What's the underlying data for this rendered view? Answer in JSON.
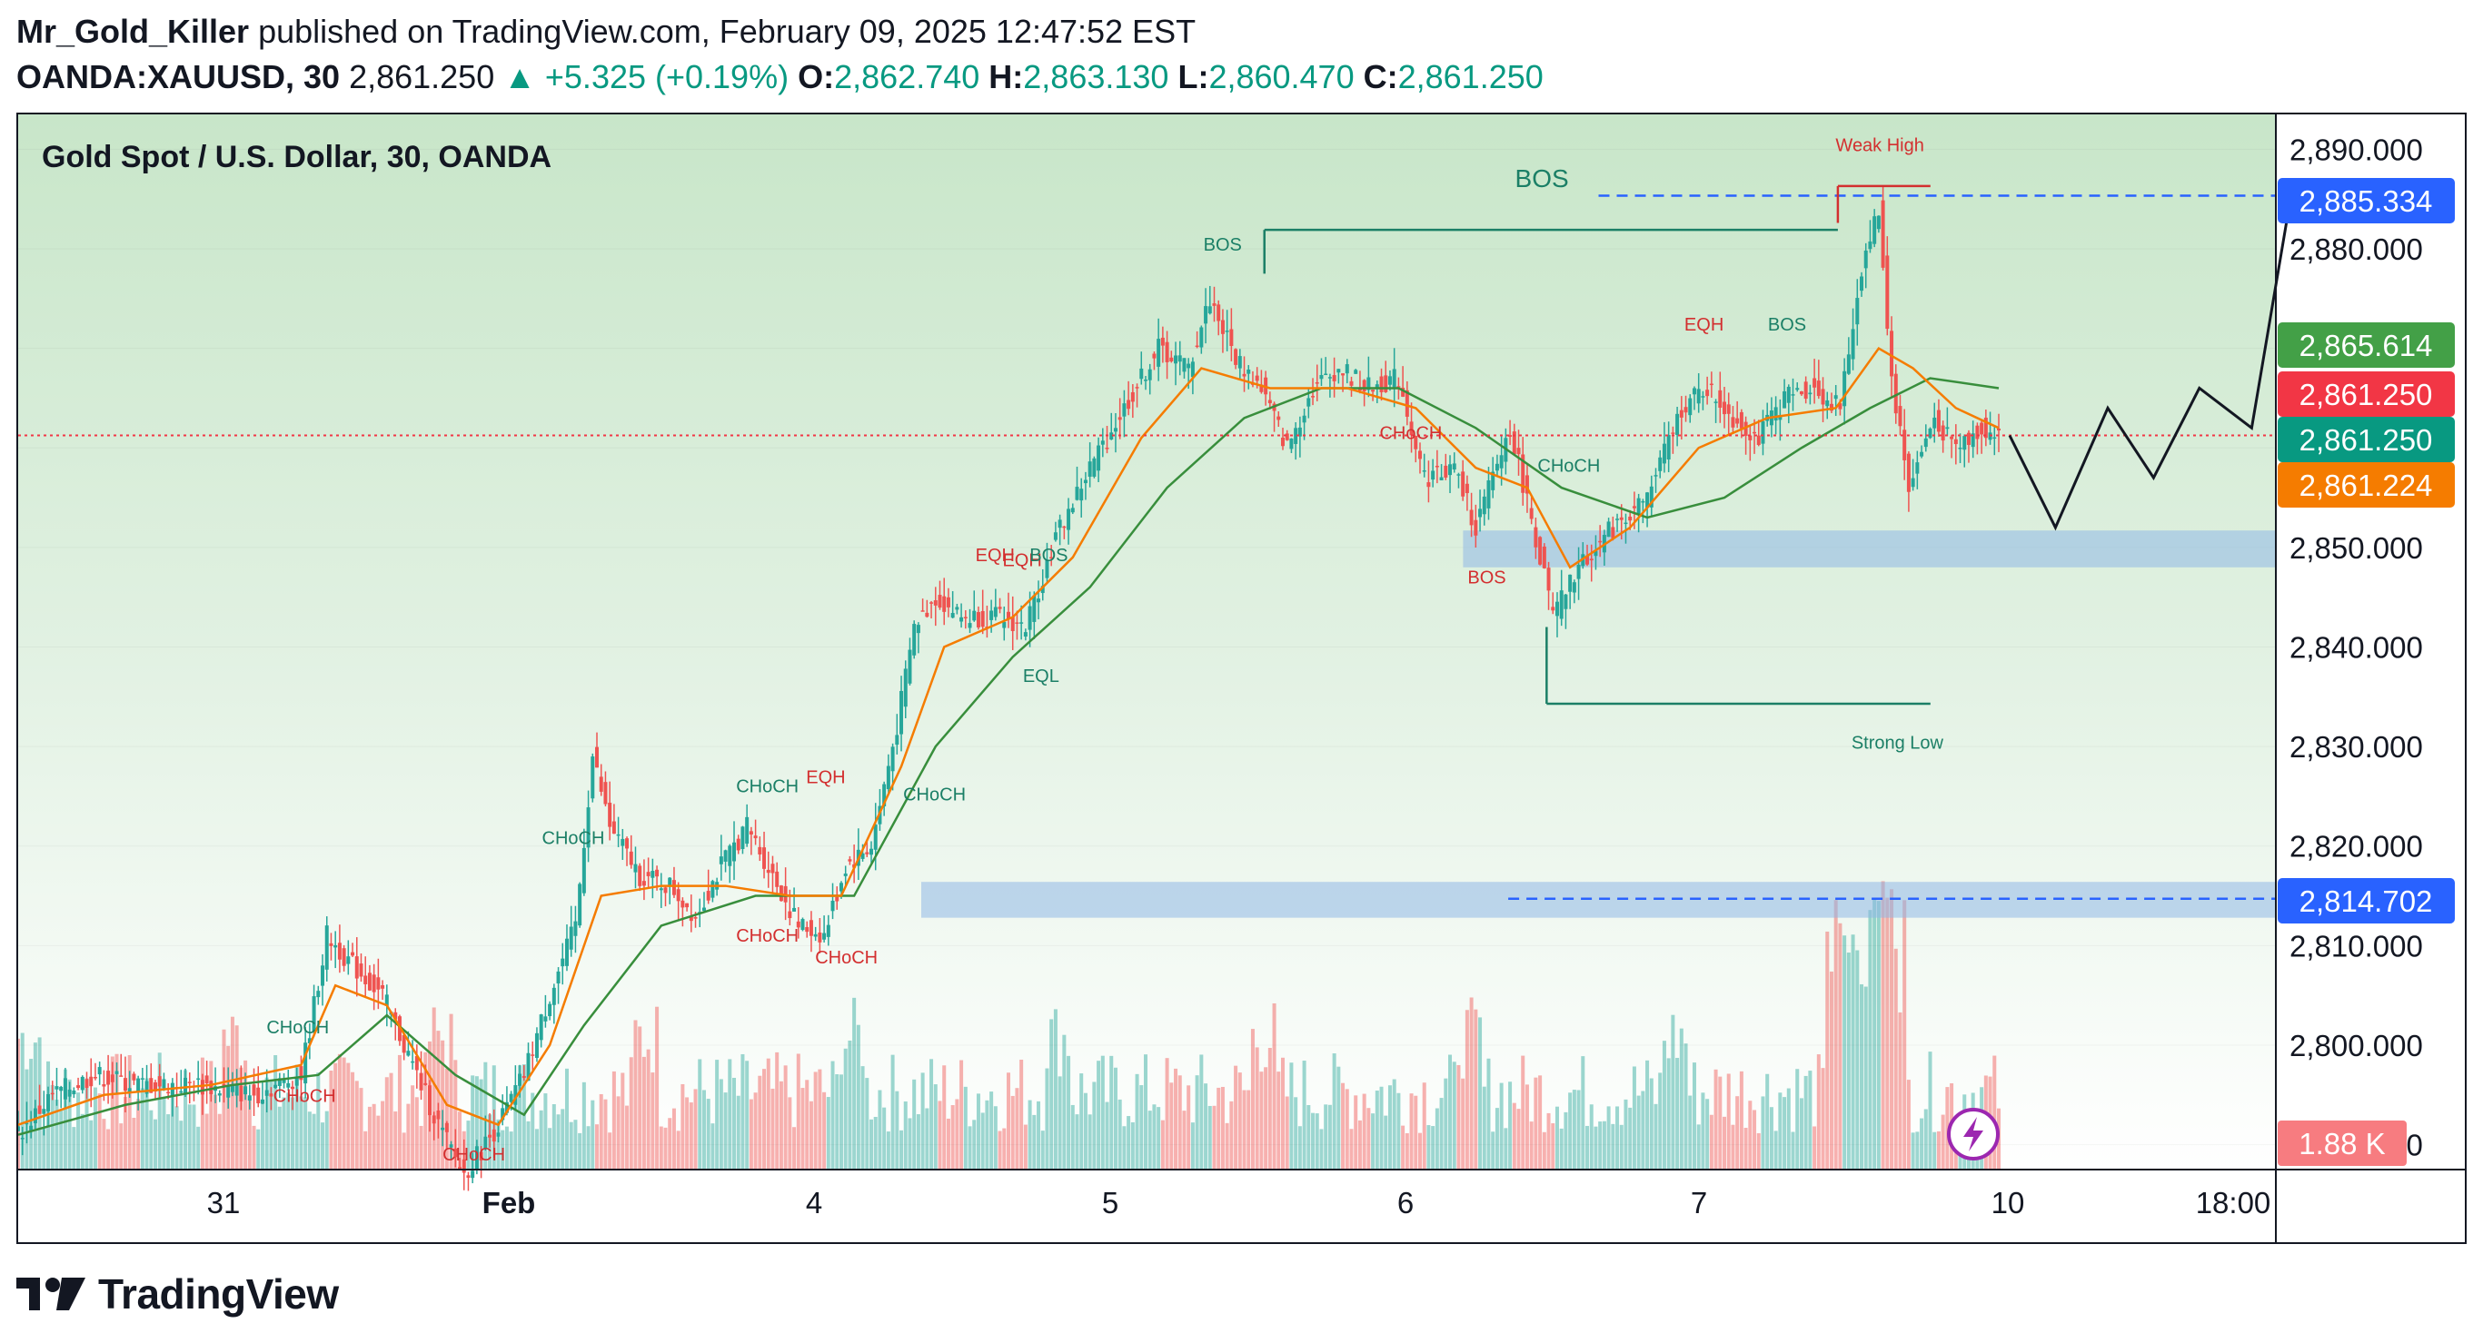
{
  "header": {
    "author": "Mr_Gold_Killer",
    "published_text": "published on TradingView.com, February 09, 2025 12:47:52 EST",
    "symbol": "OANDA:XAUUSD, 30",
    "last": "2,861.250",
    "change": "+5.325 (+0.19%)",
    "open_label": "O:",
    "open": "2,862.740",
    "high_label": "H:",
    "high": "2,863.130",
    "low_label": "L:",
    "low": "2,860.470",
    "close_label": "C:",
    "close": "2,861.250"
  },
  "footer": {
    "brand": "TradingView",
    "logo_icon": "tradingview-logo-icon"
  },
  "colors": {
    "bull": "#26a69a",
    "bear": "#ef5350",
    "ema_fast": "#f57c00",
    "ema_slow": "#388e3c",
    "accent_blue": "#2962ff",
    "structure_green": "#1b7f66",
    "structure_red": "#d32f2f"
  },
  "chart_data": {
    "type": "candlestick",
    "title": "Gold Spot / U.S. Dollar, 30, OANDA",
    "timeframe": "30",
    "x_ticks": [
      "31",
      "Feb",
      "4",
      "5",
      "6",
      "7",
      "10",
      "18:00"
    ],
    "y_ticks": [
      "2,890.000",
      "2,880.000",
      "2,870.000",
      "2,860.000",
      "2,850.000",
      "2,840.000",
      "2,830.000",
      "2,820.000",
      "2,810.000",
      "2,800.000",
      "2,790.000"
    ],
    "ylim": [
      2787.5,
      2893.5
    ],
    "price_labels": [
      {
        "value": 2885.334,
        "text": "2,885.334",
        "color": "#2962ff"
      },
      {
        "value": 2865.614,
        "text": "2,865.614",
        "color": "#43a047"
      },
      {
        "value": 2861.25,
        "text": "2,861.250",
        "color": "#f23645"
      },
      {
        "value": 2861.25,
        "text": "2,861.250",
        "color": "#089981"
      },
      {
        "value": 2861.224,
        "text": "2,861.224",
        "color": "#f57c00"
      },
      {
        "value": 2814.702,
        "text": "2,814.702",
        "color": "#2962ff"
      }
    ],
    "volume_label": "1.88 K",
    "price_path": [
      [
        0,
        2791
      ],
      [
        8,
        2795
      ],
      [
        18,
        2797
      ],
      [
        28,
        2796
      ],
      [
        42,
        2796
      ],
      [
        55,
        2795
      ],
      [
        66,
        2797
      ],
      [
        72,
        2811
      ],
      [
        78,
        2808
      ],
      [
        85,
        2805
      ],
      [
        92,
        2798
      ],
      [
        98,
        2792
      ],
      [
        104,
        2787
      ],
      [
        112,
        2792
      ],
      [
        118,
        2797
      ],
      [
        124,
        2805
      ],
      [
        130,
        2812
      ],
      [
        134,
        2829
      ],
      [
        138,
        2822
      ],
      [
        145,
        2817
      ],
      [
        152,
        2816
      ],
      [
        158,
        2813
      ],
      [
        164,
        2818
      ],
      [
        170,
        2822
      ],
      [
        176,
        2817
      ],
      [
        182,
        2812
      ],
      [
        188,
        2811
      ],
      [
        193,
        2818
      ],
      [
        199,
        2820
      ],
      [
        205,
        2832
      ],
      [
        209,
        2842
      ],
      [
        214,
        2845
      ],
      [
        220,
        2843
      ],
      [
        228,
        2843
      ],
      [
        235,
        2842
      ],
      [
        242,
        2851
      ],
      [
        250,
        2858
      ],
      [
        258,
        2864
      ],
      [
        266,
        2870
      ],
      [
        273,
        2868
      ],
      [
        278,
        2875
      ],
      [
        284,
        2869
      ],
      [
        290,
        2866
      ],
      [
        296,
        2860
      ],
      [
        302,
        2866
      ],
      [
        308,
        2868
      ],
      [
        315,
        2866
      ],
      [
        322,
        2867
      ],
      [
        328,
        2857
      ],
      [
        335,
        2858
      ],
      [
        340,
        2852
      ],
      [
        348,
        2862
      ],
      [
        354,
        2851
      ],
      [
        358,
        2843
      ],
      [
        364,
        2848
      ],
      [
        372,
        2852
      ],
      [
        380,
        2855
      ],
      [
        388,
        2864
      ],
      [
        394,
        2866
      ],
      [
        400,
        2863
      ],
      [
        406,
        2861
      ],
      [
        412,
        2865
      ],
      [
        418,
        2866
      ],
      [
        425,
        2864
      ],
      [
        430,
        2878
      ],
      [
        434,
        2884
      ],
      [
        437,
        2867
      ],
      [
        441,
        2856
      ],
      [
        447,
        2863
      ],
      [
        452,
        2860
      ],
      [
        458,
        2862
      ],
      [
        462,
        2861
      ]
    ],
    "ema_fast_path": [
      [
        0,
        2792
      ],
      [
        20,
        2795
      ],
      [
        45,
        2796
      ],
      [
        66,
        2798
      ],
      [
        74,
        2806
      ],
      [
        86,
        2804
      ],
      [
        100,
        2794
      ],
      [
        112,
        2792
      ],
      [
        124,
        2800
      ],
      [
        136,
        2815
      ],
      [
        150,
        2816
      ],
      [
        165,
        2816
      ],
      [
        180,
        2815
      ],
      [
        192,
        2815
      ],
      [
        206,
        2828
      ],
      [
        216,
        2840
      ],
      [
        232,
        2843
      ],
      [
        246,
        2849
      ],
      [
        262,
        2861
      ],
      [
        276,
        2868
      ],
      [
        292,
        2866
      ],
      [
        310,
        2866
      ],
      [
        326,
        2864
      ],
      [
        340,
        2858
      ],
      [
        352,
        2856
      ],
      [
        362,
        2848
      ],
      [
        376,
        2852
      ],
      [
        392,
        2860
      ],
      [
        408,
        2863
      ],
      [
        424,
        2864
      ],
      [
        434,
        2870
      ],
      [
        442,
        2868
      ],
      [
        452,
        2864
      ],
      [
        462,
        2862
      ]
    ],
    "ema_slow_path": [
      [
        0,
        2791
      ],
      [
        25,
        2794
      ],
      [
        50,
        2796
      ],
      [
        70,
        2797
      ],
      [
        86,
        2803
      ],
      [
        102,
        2797
      ],
      [
        118,
        2793
      ],
      [
        132,
        2802
      ],
      [
        150,
        2812
      ],
      [
        172,
        2815
      ],
      [
        195,
        2815
      ],
      [
        214,
        2830
      ],
      [
        232,
        2839
      ],
      [
        250,
        2846
      ],
      [
        268,
        2856
      ],
      [
        286,
        2863
      ],
      [
        304,
        2866
      ],
      [
        322,
        2866
      ],
      [
        340,
        2862
      ],
      [
        360,
        2856
      ],
      [
        380,
        2853
      ],
      [
        398,
        2855
      ],
      [
        416,
        2860
      ],
      [
        432,
        2864
      ],
      [
        446,
        2867
      ],
      [
        462,
        2866
      ]
    ],
    "projection_path": [
      [
        0,
        2861.25
      ],
      [
        7,
        2852
      ],
      [
        15,
        2864
      ],
      [
        22,
        2857
      ],
      [
        29,
        2866
      ],
      [
        37,
        2862
      ],
      [
        43,
        2885.3
      ]
    ],
    "zones": [
      {
        "from": 0.64,
        "to": 1.0,
        "low": 2848.0,
        "high": 2851.7
      },
      {
        "from": 0.4,
        "to": 1.0,
        "low": 2812.8,
        "high": 2816.4
      }
    ],
    "levels": [
      {
        "name": "BOS",
        "value": 2881.9,
        "from": 0.552,
        "to": 0.806,
        "style": "solid",
        "color": "#1b7f66"
      },
      {
        "name": "BOS",
        "value": 2885.334,
        "from": 0.7,
        "to": 1.0,
        "style": "dashed",
        "color": "#2962ff"
      },
      {
        "name": "Weak High",
        "value": 2886.3,
        "from": 0.806,
        "to": 0.847,
        "style": "solid",
        "color": "#d32f2f"
      },
      {
        "name": "Strong Low",
        "value": 2834.3,
        "from": 0.677,
        "to": 0.847,
        "style": "solid",
        "color": "#1b7f66"
      },
      {
        "name": "",
        "value": 2814.702,
        "from": 0.66,
        "to": 1.0,
        "style": "dashed",
        "color": "#2962ff"
      },
      {
        "name": "",
        "value": 2861.25,
        "from": 0.0,
        "to": 1.0,
        "style": "dotted",
        "color": "#f23645"
      }
    ],
    "annotations": [
      {
        "text": "Weak High",
        "x": 0.805,
        "y": 2889.8,
        "color": "#d32f2f"
      },
      {
        "text": "BOS",
        "x": 0.663,
        "y": 2886.2,
        "color": "#1b7f66"
      },
      {
        "text": "BOS",
        "x": 0.525,
        "y": 2879.8,
        "color": "#1b7f66"
      },
      {
        "text": "EQH",
        "x": 0.738,
        "y": 2871.8,
        "color": "#d32f2f"
      },
      {
        "text": "BOS",
        "x": 0.775,
        "y": 2871.8,
        "color": "#1b7f66"
      },
      {
        "text": "CHoCH",
        "x": 0.603,
        "y": 2860.9,
        "color": "#d32f2f"
      },
      {
        "text": "CHoCH",
        "x": 0.673,
        "y": 2857.6,
        "color": "#1b7f66"
      },
      {
        "text": "BOS",
        "x": 0.642,
        "y": 2846.4,
        "color": "#d32f2f"
      },
      {
        "text": "Strong Low",
        "x": 0.812,
        "y": 2829.8,
        "color": "#1b7f66"
      },
      {
        "text": "EQH",
        "x": 0.424,
        "y": 2848.6,
        "color": "#d32f2f"
      },
      {
        "text": "EQH",
        "x": 0.436,
        "y": 2848.1,
        "color": "#d32f2f"
      },
      {
        "text": "BOS",
        "x": 0.448,
        "y": 2848.6,
        "color": "#1b7f66"
      },
      {
        "text": "EQL",
        "x": 0.445,
        "y": 2836.5,
        "color": "#1b7f66"
      },
      {
        "text": "CHoCH",
        "x": 0.392,
        "y": 2824.6,
        "color": "#1b7f66"
      },
      {
        "text": "CHoCH",
        "x": 0.318,
        "y": 2825.4,
        "color": "#1b7f66"
      },
      {
        "text": "EQH",
        "x": 0.349,
        "y": 2826.3,
        "color": "#d32f2f"
      },
      {
        "text": "CHoCH",
        "x": 0.318,
        "y": 2810.4,
        "color": "#d32f2f"
      },
      {
        "text": "CHoCH",
        "x": 0.353,
        "y": 2808.2,
        "color": "#d32f2f"
      },
      {
        "text": "CHoCH",
        "x": 0.232,
        "y": 2820.2,
        "color": "#1b7f66"
      },
      {
        "text": "CHoCH",
        "x": 0.11,
        "y": 2801.2,
        "color": "#1b7f66"
      },
      {
        "text": "CHoCH",
        "x": 0.113,
        "y": 2794.3,
        "color": "#d32f2f"
      },
      {
        "text": "CHoCH",
        "x": 0.188,
        "y": 2788.4,
        "color": "#d32f2f"
      }
    ]
  }
}
